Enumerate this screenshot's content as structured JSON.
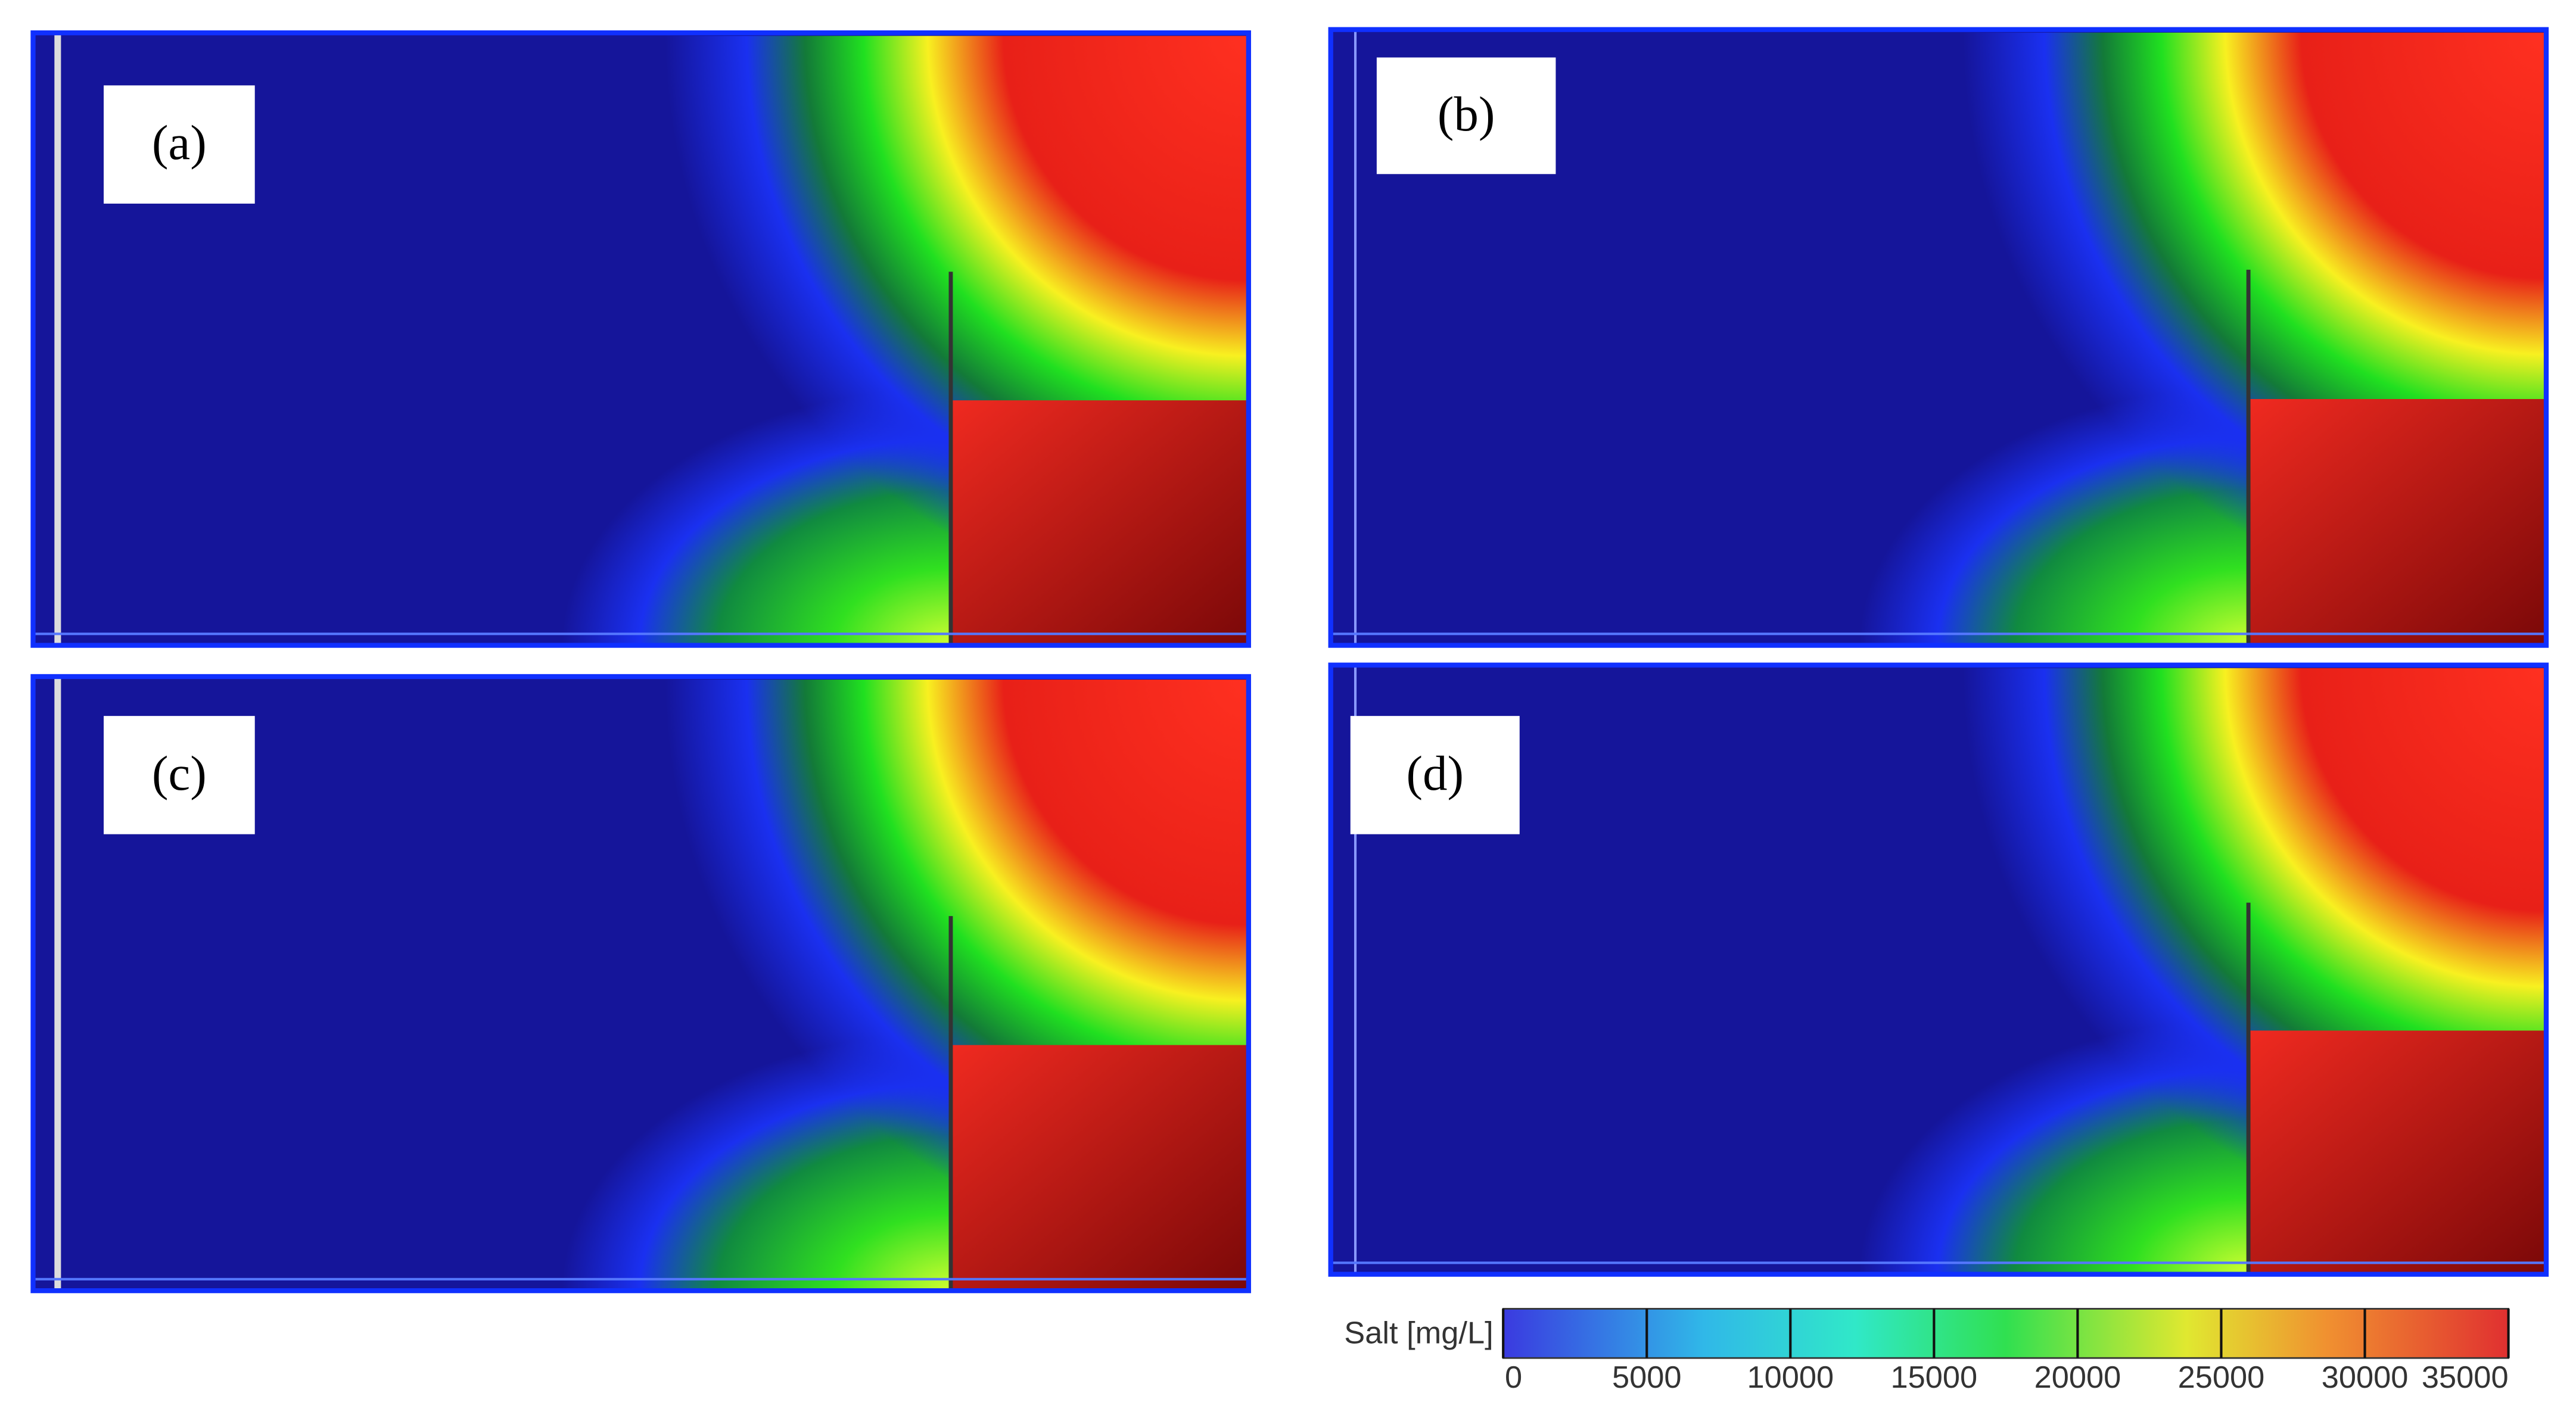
{
  "chart_data": {
    "type": "heatmap",
    "panels": [
      {
        "label": "(a)"
      },
      {
        "label": "(b)"
      },
      {
        "label": "(c)"
      },
      {
        "label": "(d)"
      }
    ],
    "colorbar": {
      "label": "Salt [mg/L]",
      "lim": [
        0,
        35000
      ],
      "ticks": [
        0,
        5000,
        10000,
        15000,
        20000,
        25000,
        30000,
        35000
      ]
    }
  }
}
